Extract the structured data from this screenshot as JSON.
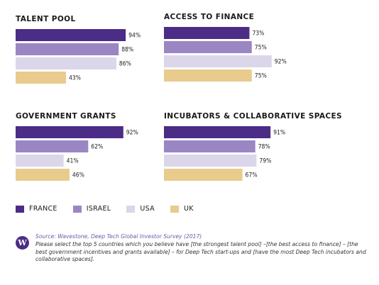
{
  "colors": {
    "France": "#4b2c86",
    "Israel": "#9b86c4",
    "USA": "#dcd6ea",
    "UK": "#e8cb8d"
  },
  "legend": [
    {
      "label": "FRANCE",
      "series": "France"
    },
    {
      "label": "ISRAEL",
      "series": "Israel"
    },
    {
      "label": "USA",
      "series": "USA"
    },
    {
      "label": "UK",
      "series": "UK"
    }
  ],
  "source": {
    "logo_letter": "W",
    "source_line": "Source: Wavestone, Deep Tech Global Investor Survey (2017)",
    "question": "Please select the top 5 countries which you believe have [the strongest talent pool] –[the best access to finance] – [the best government incentives and grants available] – for Deep Tech start-ups and [have the most Deep Tech incubators and collaborative spaces]."
  },
  "chart_data": [
    {
      "type": "bar",
      "orientation": "horizontal",
      "title": "TALENT POOL",
      "categories": [
        "France",
        "Israel",
        "USA",
        "UK"
      ],
      "values": [
        94,
        88,
        86,
        43
      ],
      "labels": [
        "94%",
        "88%",
        "86%",
        "43%"
      ],
      "xlim": [
        0,
        100
      ],
      "grid": false
    },
    {
      "type": "bar",
      "orientation": "horizontal",
      "title": "ACCESS TO FINANCE",
      "categories": [
        "France",
        "Israel",
        "USA",
        "UK"
      ],
      "values": [
        73,
        75,
        92,
        75
      ],
      "labels": [
        "73%",
        "75%",
        "92%",
        "75%"
      ],
      "xlim": [
        0,
        100
      ],
      "grid": false
    },
    {
      "type": "bar",
      "orientation": "horizontal",
      "title": "GOVERNMENT GRANTS",
      "categories": [
        "France",
        "Israel",
        "USA",
        "UK"
      ],
      "values": [
        92,
        62,
        41,
        46
      ],
      "labels": [
        "92%",
        "62%",
        "41%",
        "46%"
      ],
      "xlim": [
        0,
        100
      ],
      "grid": false
    },
    {
      "type": "bar",
      "orientation": "horizontal",
      "title": "INCUBATORS & COLLABORATIVE SPACES",
      "categories": [
        "France",
        "Israel",
        "USA",
        "UK"
      ],
      "values": [
        91,
        78,
        79,
        67
      ],
      "labels": [
        "91%",
        "78%",
        "79%",
        "67%"
      ],
      "xlim": [
        0,
        100
      ],
      "grid": false
    }
  ]
}
